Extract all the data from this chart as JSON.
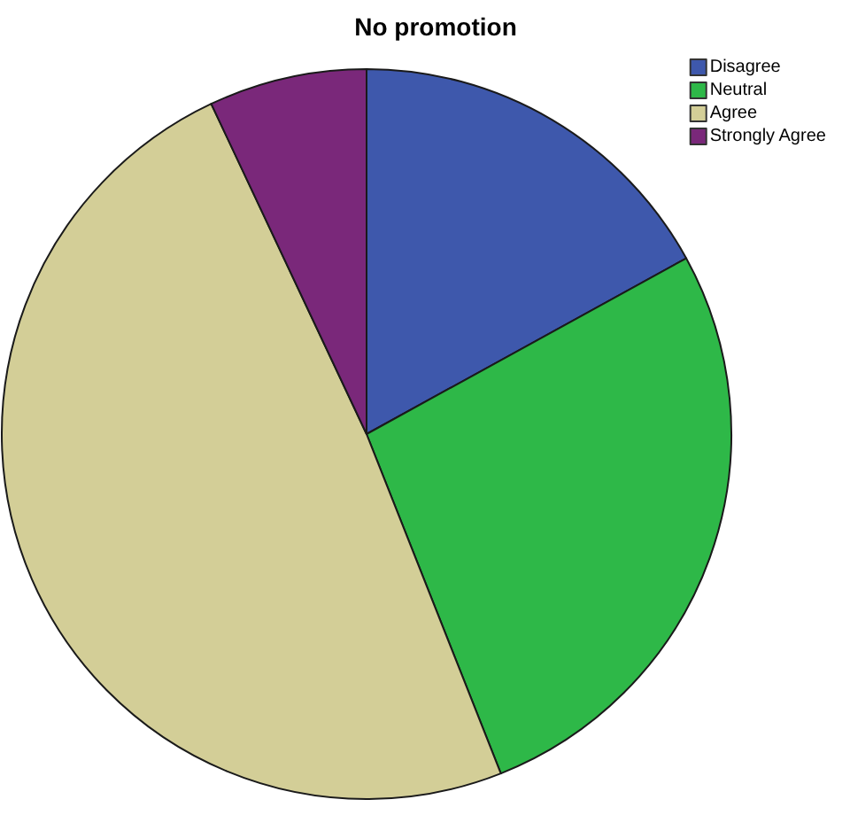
{
  "chart_data": {
    "type": "pie",
    "title": "No promotion",
    "categories": [
      "Disagree",
      "Neutral",
      "Agree",
      "Strongly Agree"
    ],
    "values": [
      17,
      27,
      49,
      7
    ],
    "colors": [
      "#3e58ac",
      "#2eb848",
      "#d3ce97",
      "#7a287a"
    ],
    "legend": "top right"
  }
}
